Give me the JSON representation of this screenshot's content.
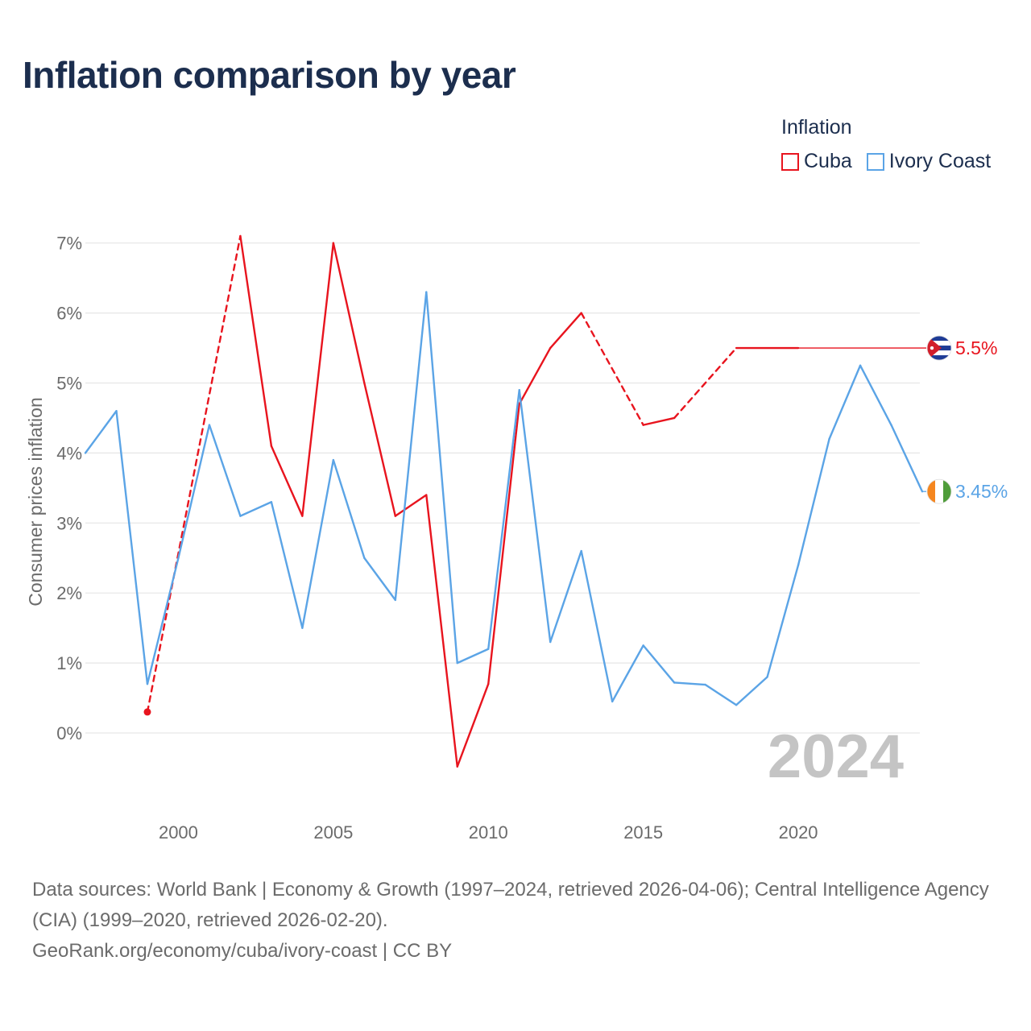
{
  "title": "Inflation comparison by year",
  "legend": {
    "title": "Inflation",
    "items": [
      {
        "label": "Cuba",
        "color": "#e8141e"
      },
      {
        "label": "Ivory Coast",
        "color": "#5ba4e6"
      }
    ]
  },
  "footer": {
    "line1": "Data sources: World Bank | Economy & Growth (1997–2024, retrieved 2026-04-06); Central Intelligence Agency (CIA) (1999–2020, retrieved 2026-02-20).",
    "line2": "GeoRank.org/economy/cuba/ivory-coast | CC BY"
  },
  "chart_data": {
    "type": "line",
    "title": "Inflation comparison by year",
    "xlabel": "",
    "ylabel": "Consumer prices inflation",
    "xlim": [
      1997,
      2024
    ],
    "ylim": [
      -0.5,
      7.5
    ],
    "x_ticks": [
      2000,
      2005,
      2010,
      2015,
      2020
    ],
    "y_ticks": [
      0,
      1,
      2,
      3,
      4,
      5,
      6,
      7
    ],
    "y_tick_labels": [
      "0%",
      "1%",
      "2%",
      "3%",
      "4%",
      "5%",
      "6%",
      "7%"
    ],
    "watermark_year": "2024",
    "series": [
      {
        "name": "Cuba",
        "color": "#e8141e",
        "end_label": "5.5%",
        "points": [
          [
            1999,
            0.3
          ],
          [
            2002,
            7.1
          ],
          [
            2003,
            4.1
          ],
          [
            2004,
            3.1
          ],
          [
            2005,
            7.0
          ],
          [
            2006,
            5.0
          ],
          [
            2007,
            3.1
          ],
          [
            2008,
            3.4
          ],
          [
            2009,
            -0.48
          ],
          [
            2010,
            0.7
          ],
          [
            2011,
            4.7
          ],
          [
            2012,
            5.5
          ],
          [
            2013,
            6.0
          ],
          [
            2015,
            4.4
          ],
          [
            2016,
            4.5
          ],
          [
            2018,
            5.5
          ],
          [
            2020,
            5.5
          ]
        ],
        "dashed_segments": [
          [
            1999,
            2002
          ],
          [
            2013,
            2015
          ],
          [
            2016,
            2018
          ]
        ],
        "extend_to": 2024
      },
      {
        "name": "Ivory Coast",
        "color": "#5ba4e6",
        "end_label": "3.45%",
        "points": [
          [
            1997,
            4.0
          ],
          [
            1998,
            4.6
          ],
          [
            1999,
            0.7
          ],
          [
            2000,
            2.5
          ],
          [
            2001,
            4.4
          ],
          [
            2002,
            3.1
          ],
          [
            2003,
            3.3
          ],
          [
            2004,
            1.5
          ],
          [
            2005,
            3.9
          ],
          [
            2006,
            2.5
          ],
          [
            2007,
            1.9
          ],
          [
            2008,
            6.3
          ],
          [
            2009,
            1.0
          ],
          [
            2010,
            1.2
          ],
          [
            2011,
            4.9
          ],
          [
            2012,
            1.3
          ],
          [
            2013,
            2.6
          ],
          [
            2014,
            0.45
          ],
          [
            2015,
            1.25
          ],
          [
            2016,
            0.72
          ],
          [
            2017,
            0.69
          ],
          [
            2018,
            0.4
          ],
          [
            2019,
            0.8
          ],
          [
            2020,
            2.4
          ],
          [
            2021,
            4.2
          ],
          [
            2022,
            5.25
          ],
          [
            2023,
            4.4
          ],
          [
            2024,
            3.45
          ]
        ],
        "dashed_segments": []
      }
    ]
  }
}
